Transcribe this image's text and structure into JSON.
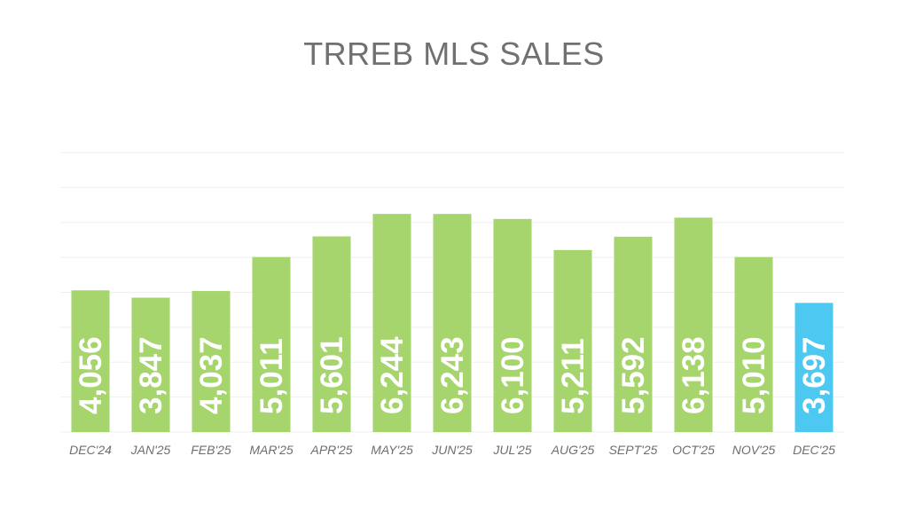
{
  "chart_data": {
    "type": "bar",
    "title": "TRREB MLS SALES",
    "xlabel": "",
    "ylabel": "",
    "categories": [
      "DEC'24",
      "JAN'25",
      "FEB'25",
      "MAR'25",
      "APR'25",
      "MAY'25",
      "JUN'25",
      "JUL'25",
      "AUG'25",
      "SEPT'25",
      "OCT'25",
      "NOV'25",
      "DEC'25"
    ],
    "values": [
      4056,
      3847,
      4037,
      5011,
      5601,
      6244,
      6243,
      6100,
      5211,
      5592,
      6138,
      5010,
      3697
    ],
    "data_labels": [
      "4,056",
      "3,847",
      "4,037",
      "5,011",
      "5,601",
      "6,244",
      "6,243",
      "6,100",
      "5,211",
      "5,592",
      "6,138",
      "5,010",
      "3,697"
    ],
    "ylim": [
      0,
      8000
    ],
    "grid": true,
    "colors": {
      "bar": "#a6d46d",
      "highlight_bar": "#4dc8f0",
      "grid": "#efefef",
      "title": "#707070",
      "tick": "#6e6e6e",
      "label": "#ffffff"
    },
    "highlight_index": 12
  }
}
